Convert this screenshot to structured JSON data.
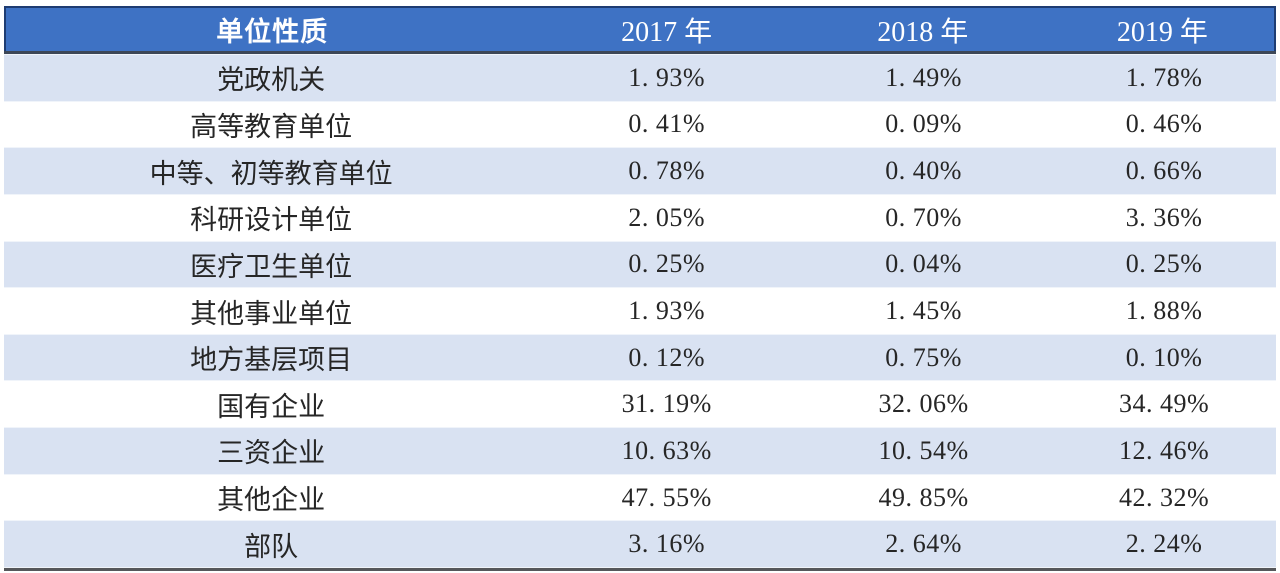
{
  "colors": {
    "header_bg": "#3E72C4",
    "header_border": "#1E3C72",
    "header_text": "#FFFFFF",
    "band_row_bg": "#D9E2F2",
    "plain_row_bg": "#FFFFFF",
    "separator_dark": "#3D4757",
    "bottom_border": "#56575B",
    "body_text": "#262626"
  },
  "table": {
    "header": [
      "单位性质",
      "2017 年",
      "2018 年",
      "2019 年"
    ],
    "rows": [
      {
        "label": "党政机关",
        "values": [
          "1. 93%",
          "1. 49%",
          "1. 78%"
        ]
      },
      {
        "label": "高等教育单位",
        "values": [
          "0. 41%",
          "0. 09%",
          "0. 46%"
        ]
      },
      {
        "label": "中等、初等教育单位",
        "values": [
          "0. 78%",
          "0. 40%",
          "0. 66%"
        ]
      },
      {
        "label": "科研设计单位",
        "values": [
          "2. 05%",
          "0. 70%",
          "3. 36%"
        ]
      },
      {
        "label": "医疗卫生单位",
        "values": [
          "0. 25%",
          "0. 04%",
          "0. 25%"
        ]
      },
      {
        "label": "其他事业单位",
        "values": [
          "1. 93%",
          "1. 45%",
          "1. 88%"
        ]
      },
      {
        "label": "地方基层项目",
        "values": [
          "0. 12%",
          "0. 75%",
          "0. 10%"
        ]
      },
      {
        "label": "国有企业",
        "values": [
          "31. 19%",
          "32. 06%",
          "34. 49%"
        ]
      },
      {
        "label": "三资企业",
        "values": [
          "10. 63%",
          "10. 54%",
          "12. 46%"
        ]
      },
      {
        "label": "其他企业",
        "values": [
          "47. 55%",
          "49. 85%",
          "42. 32%"
        ]
      },
      {
        "label": "部队",
        "values": [
          "3. 16%",
          "2. 64%",
          "2. 24%"
        ]
      }
    ]
  },
  "chart_data": {
    "type": "table",
    "title": "",
    "columns": [
      "单位性质",
      "2017年",
      "2018年",
      "2019年"
    ],
    "unit": "percent",
    "categories": [
      "党政机关",
      "高等教育单位",
      "中等、初等教育单位",
      "科研设计单位",
      "医疗卫生单位",
      "其他事业单位",
      "地方基层项目",
      "国有企业",
      "三资企业",
      "其他企业",
      "部队"
    ],
    "series": [
      {
        "name": "2017年",
        "values": [
          1.93,
          0.41,
          0.78,
          2.05,
          0.25,
          1.93,
          0.12,
          31.19,
          10.63,
          47.55,
          3.16
        ]
      },
      {
        "name": "2018年",
        "values": [
          1.49,
          0.09,
          0.4,
          0.7,
          0.04,
          1.45,
          0.75,
          32.06,
          10.54,
          49.85,
          2.64
        ]
      },
      {
        "name": "2019年",
        "values": [
          1.78,
          0.46,
          0.66,
          3.36,
          0.25,
          1.88,
          0.1,
          34.49,
          12.46,
          42.32,
          2.24
        ]
      }
    ]
  }
}
